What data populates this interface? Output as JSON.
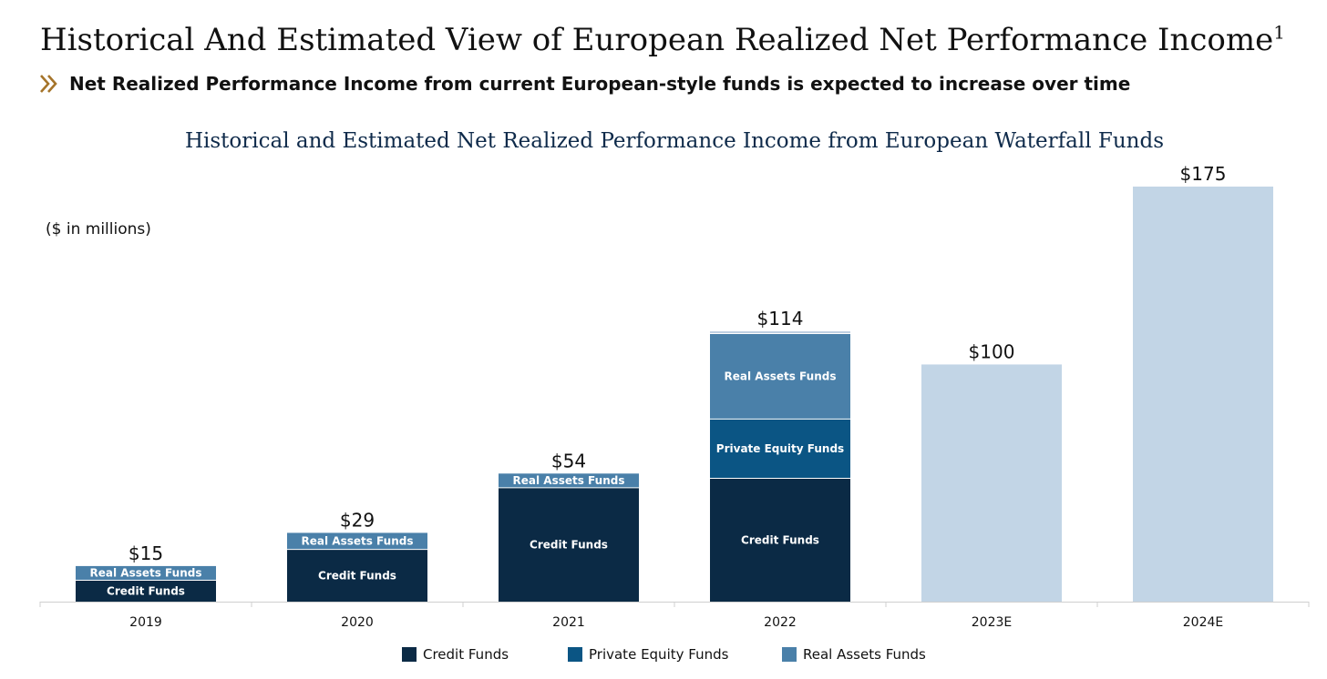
{
  "header": {
    "title": "Historical And Estimated View of European Realized Net Performance Income",
    "title_footnote": "1",
    "subtitle": "Net Realized Performance Income from current European-style funds is expected to increase over time",
    "chevron_icon": "double-chevron-right-icon"
  },
  "chart_data": {
    "type": "bar",
    "stacked": true,
    "title": "Historical and Estimated Net Realized Performance Income from European Waterfall Funds",
    "units_label": "($ in millions)",
    "categories": [
      "2019",
      "2020",
      "2021",
      "2022",
      "2023E",
      "2024E"
    ],
    "totals": [
      15,
      29,
      54,
      114,
      100,
      175
    ],
    "total_labels": [
      "$15",
      "$29",
      "$54",
      "$114",
      "$100",
      "$175"
    ],
    "ylim": [
      0,
      175
    ],
    "grid": false,
    "legend_position": "bottom",
    "series": [
      {
        "name": "Credit Funds",
        "color": "#0b2a45",
        "values": [
          9,
          22,
          48,
          52,
          0,
          0
        ],
        "segment_label": "Credit Funds"
      },
      {
        "name": "Private Equity Funds",
        "color": "#0b5584",
        "values": [
          0,
          0,
          0,
          25,
          0,
          0
        ],
        "segment_label": "Private Equity Funds"
      },
      {
        "name": "Real Assets Funds",
        "color": "#4a80a9",
        "values": [
          6,
          7,
          6,
          36,
          0,
          0
        ],
        "segment_label": "Real Assets Funds"
      },
      {
        "name": "",
        "color": "#bfd0e2",
        "values": [
          0,
          0,
          0,
          1,
          0,
          0
        ],
        "segment_label": ""
      },
      {
        "name": "",
        "color": "#c2d5e6",
        "values": [
          0,
          0,
          0,
          0,
          100,
          175
        ],
        "segment_label": ""
      }
    ],
    "legend": [
      {
        "name": "Credit Funds",
        "color": "#0b2a45"
      },
      {
        "name": "Private Equity Funds",
        "color": "#0b5584"
      },
      {
        "name": "Real Assets Funds",
        "color": "#4a80a9"
      }
    ]
  }
}
